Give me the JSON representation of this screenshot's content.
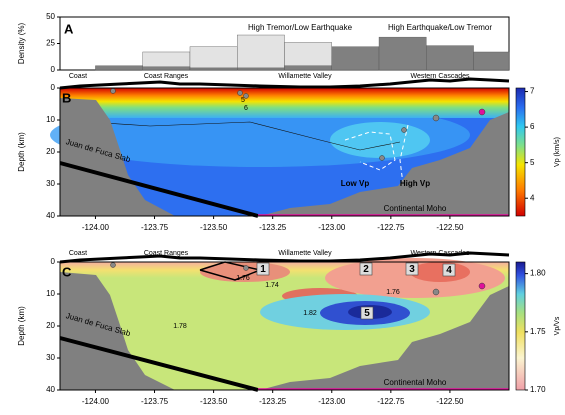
{
  "chart_data": [
    {
      "type": "histogram",
      "panel": "A",
      "ylabel": "Density (%)",
      "bins": [
        -124.0,
        -123.8,
        -123.6,
        -123.4,
        -123.2,
        -123.0,
        -122.8,
        -122.6,
        -122.4,
        -122.25
      ],
      "series": [
        {
          "color": "#e3e3e3",
          "values": [
            0,
            17,
            22,
            33,
            26,
            13,
            8,
            2,
            0
          ]
        },
        {
          "color": "#808080",
          "values": [
            4,
            3,
            2,
            2,
            4,
            22,
            31,
            23,
            17
          ]
        }
      ],
      "annotations": [
        "High Tremor/Low Earthquake",
        "High Earthquake/Low Tremor"
      ],
      "xlim": [
        -124.15,
        -122.25
      ],
      "ylim": [
        0,
        50
      ],
      "yticks": [
        0,
        25,
        50
      ]
    },
    {
      "type": "contour",
      "panel": "B",
      "ylabel": "Depth (km)",
      "xlim": [
        -124.15,
        -122.25
      ],
      "xticks": [
        {
          "value": -124.0,
          "label": "-124.00"
        },
        {
          "value": -123.75,
          "label": "-123.75"
        },
        {
          "value": -123.5,
          "label": "-123.50"
        },
        {
          "value": -123.25,
          "label": "-123.25"
        },
        {
          "value": -123.0,
          "label": "-123.00"
        },
        {
          "value": -122.75,
          "label": "-122.75"
        },
        {
          "value": -122.5,
          "label": "-122.50"
        }
      ],
      "ylim": [
        0,
        40
      ],
      "yticks": [
        0,
        10,
        20,
        30,
        40
      ],
      "regions": [
        "Coast",
        "Coast Ranges",
        "Willamette Valley",
        "Western Cascades"
      ],
      "annotations": [
        "Juan de Fuca Slab",
        "Continental Moho",
        "Low Vp",
        "High Vp"
      ],
      "contour_labels": [
        "5",
        "6"
      ],
      "colorbar": {
        "label": "Vp (km/s)",
        "lim": [
          3.5,
          7.1
        ],
        "ticks": [
          4,
          5,
          6,
          7
        ]
      }
    },
    {
      "type": "contour",
      "panel": "C",
      "ylabel": "Depth (km)",
      "xlim": [
        -124.15,
        -122.25
      ],
      "xticks": [
        {
          "value": -124.0,
          "label": "-124.00"
        },
        {
          "value": -123.75,
          "label": "-123.75"
        },
        {
          "value": -123.5,
          "label": "-123.50"
        },
        {
          "value": -123.25,
          "label": "-123.25"
        },
        {
          "value": -123.0,
          "label": "-123.00"
        },
        {
          "value": -122.75,
          "label": "-122.75"
        },
        {
          "value": -122.5,
          "label": "-122.50"
        }
      ],
      "ylim": [
        0,
        40
      ],
      "yticks": [
        0,
        10,
        20,
        30,
        40
      ],
      "regions": [
        "Coast",
        "Coast Ranges",
        "Willamette Valley",
        "Western Cascades"
      ],
      "annotations": [
        "Juan de Fuca Slab",
        "Continental Moho"
      ],
      "markers": [
        "1",
        "2",
        "3",
        "4",
        "5"
      ],
      "contour_labels": [
        "1.76",
        "1.74",
        "1.78",
        "1.82",
        "1.76"
      ],
      "colorbar": {
        "label": "Vp/Vs",
        "lim": [
          1.7,
          1.81
        ],
        "ticks": [
          {
            "value": 1.7,
            "label": "1.70"
          },
          1.75,
          {
            "value": 1.8,
            "label": "1.80"
          }
        ]
      }
    }
  ]
}
